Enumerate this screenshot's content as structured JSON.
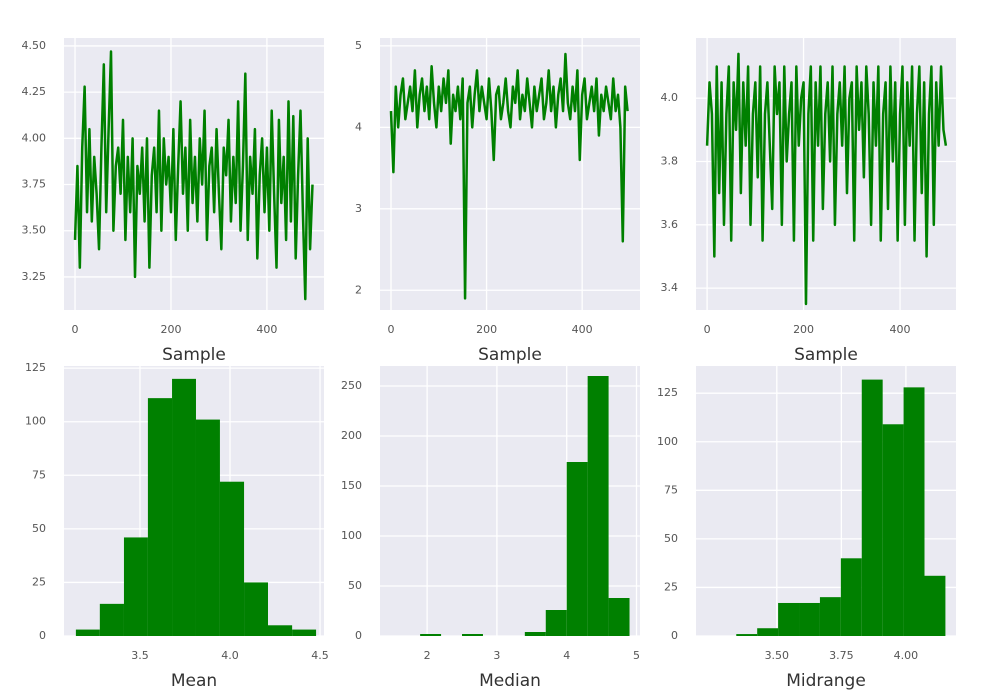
{
  "chart_data": [
    {
      "type": "line",
      "xlabel": "Sample",
      "color": "#008000",
      "grid": true,
      "x": [
        0,
        5,
        10,
        15,
        20,
        25,
        30,
        35,
        40,
        45,
        50,
        55,
        60,
        65,
        70,
        75,
        80,
        85,
        90,
        95,
        100,
        105,
        110,
        115,
        120,
        125,
        130,
        135,
        140,
        145,
        150,
        155,
        160,
        165,
        170,
        175,
        180,
        185,
        190,
        195,
        200,
        205,
        210,
        215,
        220,
        225,
        230,
        235,
        240,
        245,
        250,
        255,
        260,
        265,
        270,
        275,
        280,
        285,
        290,
        295,
        300,
        305,
        310,
        315,
        320,
        325,
        330,
        335,
        340,
        345,
        350,
        355,
        360,
        365,
        370,
        375,
        380,
        385,
        390,
        395,
        400,
        405,
        410,
        415,
        420,
        425,
        430,
        435,
        440,
        445,
        450,
        455,
        460,
        465,
        470,
        475,
        480,
        485,
        490,
        495
      ],
      "values": [
        3.45,
        3.85,
        3.3,
        3.95,
        4.28,
        3.6,
        4.05,
        3.55,
        3.9,
        3.7,
        3.4,
        3.95,
        4.4,
        3.6,
        4.05,
        4.47,
        3.5,
        3.85,
        3.95,
        3.7,
        4.1,
        3.45,
        3.9,
        3.6,
        4.0,
        3.25,
        3.85,
        3.7,
        3.95,
        3.55,
        4.0,
        3.3,
        3.8,
        3.95,
        3.6,
        4.15,
        3.5,
        4.0,
        3.75,
        3.9,
        3.6,
        4.05,
        3.45,
        3.85,
        4.2,
        3.7,
        3.95,
        3.5,
        4.1,
        3.65,
        3.9,
        3.55,
        4.0,
        3.75,
        4.15,
        3.45,
        3.85,
        3.95,
        3.6,
        4.05,
        3.7,
        3.4,
        3.95,
        3.8,
        4.1,
        3.55,
        3.9,
        3.65,
        4.2,
        3.5,
        3.85,
        4.35,
        3.45,
        3.9,
        3.7,
        4.05,
        3.35,
        3.8,
        4.0,
        3.6,
        3.95,
        3.5,
        4.15,
        3.7,
        3.3,
        4.1,
        3.65,
        3.9,
        3.45,
        4.2,
        3.55,
        4.12,
        3.35,
        3.8,
        4.15,
        3.6,
        3.13,
        4.0,
        3.4,
        3.75
      ],
      "xlim": [
        -23,
        519
      ],
      "xticks": [
        0,
        200,
        400
      ],
      "ylim": [
        3.071,
        4.543
      ],
      "yticks": [
        {
          "value": 3.25,
          "label": "3.25"
        },
        {
          "value": 3.5,
          "label": "3.50"
        },
        {
          "value": 3.75,
          "label": "3.75"
        },
        {
          "value": 4.0,
          "label": "4.00"
        },
        {
          "value": 4.25,
          "label": "4.25"
        },
        {
          "value": 4.5,
          "label": "4.50"
        }
      ]
    },
    {
      "type": "line",
      "xlabel": "Sample",
      "color": "#008000",
      "grid": true,
      "x": [
        0,
        5,
        10,
        15,
        20,
        25,
        30,
        35,
        40,
        45,
        50,
        55,
        60,
        65,
        70,
        75,
        80,
        85,
        90,
        95,
        100,
        105,
        110,
        115,
        120,
        125,
        130,
        135,
        140,
        145,
        150,
        155,
        160,
        165,
        170,
        175,
        180,
        185,
        190,
        195,
        200,
        205,
        210,
        215,
        220,
        225,
        230,
        235,
        240,
        245,
        250,
        255,
        260,
        265,
        270,
        275,
        280,
        285,
        290,
        295,
        300,
        305,
        310,
        315,
        320,
        325,
        330,
        335,
        340,
        345,
        350,
        355,
        360,
        365,
        370,
        375,
        380,
        385,
        390,
        395,
        400,
        405,
        410,
        415,
        420,
        425,
        430,
        435,
        440,
        445,
        450,
        455,
        460,
        465,
        470,
        475,
        480,
        485,
        490,
        495
      ],
      "values": [
        4.2,
        3.45,
        4.5,
        4.0,
        4.4,
        4.6,
        4.1,
        4.3,
        4.5,
        4.2,
        4.7,
        4.0,
        4.4,
        4.6,
        4.2,
        4.5,
        4.1,
        4.75,
        4.3,
        4.0,
        4.5,
        4.2,
        4.6,
        4.3,
        4.7,
        3.8,
        4.4,
        4.2,
        4.5,
        4.1,
        4.6,
        1.9,
        4.3,
        4.5,
        4.0,
        4.4,
        4.7,
        4.2,
        4.5,
        4.3,
        4.1,
        4.6,
        4.2,
        3.6,
        4.4,
        4.5,
        4.1,
        4.3,
        4.6,
        4.2,
        4.0,
        4.5,
        4.3,
        4.7,
        4.1,
        4.4,
        4.2,
        4.6,
        4.3,
        4.0,
        4.5,
        4.2,
        4.4,
        4.6,
        4.1,
        4.3,
        4.7,
        4.2,
        4.5,
        4.0,
        4.4,
        4.6,
        4.2,
        4.9,
        4.3,
        4.1,
        4.5,
        4.2,
        4.7,
        3.6,
        4.4,
        4.6,
        4.1,
        4.3,
        4.5,
        4.2,
        4.6,
        3.9,
        4.4,
        4.2,
        4.5,
        4.3,
        4.1,
        4.6,
        4.2,
        4.4,
        4.0,
        2.6,
        4.5,
        4.2
      ],
      "xlim": [
        -23,
        521
      ],
      "xticks": [
        0,
        200,
        400
      ],
      "ylim": [
        1.758,
        5.097
      ],
      "yticks": [
        2,
        3,
        4,
        5
      ]
    },
    {
      "type": "line",
      "xlabel": "Sample",
      "color": "#008000",
      "grid": true,
      "x": [
        0,
        5,
        10,
        15,
        20,
        25,
        30,
        35,
        40,
        45,
        50,
        55,
        60,
        65,
        70,
        75,
        80,
        85,
        90,
        95,
        100,
        105,
        110,
        115,
        120,
        125,
        130,
        135,
        140,
        145,
        150,
        155,
        160,
        165,
        170,
        175,
        180,
        185,
        190,
        195,
        200,
        205,
        210,
        215,
        220,
        225,
        230,
        235,
        240,
        245,
        250,
        255,
        260,
        265,
        270,
        275,
        280,
        285,
        290,
        295,
        300,
        305,
        310,
        315,
        320,
        325,
        330,
        335,
        340,
        345,
        350,
        355,
        360,
        365,
        370,
        375,
        380,
        385,
        390,
        395,
        400,
        405,
        410,
        415,
        420,
        425,
        430,
        435,
        440,
        445,
        450,
        455,
        460,
        465,
        470,
        475,
        480,
        485,
        490,
        495
      ],
      "values": [
        3.85,
        4.05,
        3.95,
        3.5,
        4.1,
        3.7,
        4.05,
        3.6,
        3.95,
        4.1,
        3.55,
        4.05,
        3.9,
        4.14,
        3.7,
        4.05,
        3.85,
        4.1,
        3.6,
        3.95,
        4.05,
        3.75,
        4.1,
        3.55,
        3.95,
        4.05,
        3.85,
        3.65,
        4.1,
        3.95,
        4.05,
        3.6,
        4.1,
        3.8,
        3.95,
        4.05,
        3.55,
        4.1,
        3.85,
        4.0,
        4.05,
        3.35,
        3.95,
        4.1,
        3.55,
        4.05,
        3.85,
        4.1,
        3.65,
        3.95,
        4.05,
        3.8,
        4.1,
        3.6,
        3.95,
        4.05,
        3.85,
        4.1,
        3.7,
        4.0,
        4.05,
        3.55,
        4.1,
        3.9,
        4.05,
        3.75,
        4.1,
        3.95,
        3.6,
        4.05,
        3.85,
        4.1,
        3.55,
        3.95,
        4.05,
        3.65,
        4.1,
        3.8,
        4.05,
        3.55,
        3.95,
        4.1,
        3.6,
        4.05,
        3.85,
        4.1,
        3.55,
        3.95,
        4.1,
        3.7,
        4.05,
        3.5,
        3.95,
        4.1,
        3.6,
        4.05,
        3.85,
        4.1,
        3.9,
        3.85
      ],
      "xlim": [
        -23,
        516
      ],
      "xticks": [
        0,
        200,
        400
      ],
      "ylim": [
        3.331,
        4.19
      ],
      "yticks": [
        3.4,
        3.6,
        3.8,
        {
          "value": 4.0,
          "label": "4.0"
        }
      ]
    },
    {
      "type": "histogram",
      "xlabel": "Mean",
      "color": "#008000",
      "grid": true,
      "bins": [
        3.144,
        3.277,
        3.411,
        3.544,
        3.678,
        3.811,
        3.944,
        4.078,
        4.211,
        4.345,
        4.478
      ],
      "values": [
        3,
        15,
        46,
        111,
        120,
        101,
        72,
        25,
        5,
        3
      ],
      "xlim": [
        3.078,
        4.522
      ],
      "xticks": [
        3.5,
        {
          "value": 4.0,
          "label": "4.0"
        },
        4.5
      ],
      "ylim": [
        0,
        126
      ],
      "yticks": [
        0,
        25,
        50,
        75,
        100,
        125
      ]
    },
    {
      "type": "histogram",
      "xlabel": "Median",
      "color": "#008000",
      "grid": true,
      "bins": [
        1.9,
        2.2,
        2.5,
        2.8,
        3.1,
        3.4,
        3.7,
        4.0,
        4.3,
        4.6,
        4.9
      ],
      "values": [
        2,
        0,
        2,
        0,
        0,
        4,
        26,
        174,
        260,
        38
      ],
      "xlim": [
        1.325,
        5.05
      ],
      "xticks": [
        2,
        3,
        4,
        5
      ],
      "ylim": [
        0,
        270
      ],
      "yticks": [
        0,
        50,
        100,
        150,
        200,
        250
      ]
    },
    {
      "type": "histogram",
      "xlabel": "Midrange",
      "color": "#008000",
      "grid": true,
      "bins": [
        3.343,
        3.424,
        3.505,
        3.586,
        3.667,
        3.748,
        3.829,
        3.91,
        3.991,
        4.072,
        4.153
      ],
      "values": [
        1,
        4,
        17,
        17,
        20,
        40,
        132,
        109,
        128,
        31
      ],
      "xlim": [
        3.187,
        4.194
      ],
      "xticks": [
        {
          "value": 3.5,
          "label": "3.50"
        },
        {
          "value": 3.75,
          "label": "3.75"
        },
        {
          "value": 4.0,
          "label": "4.00"
        }
      ],
      "ylim": [
        0,
        139
      ],
      "yticks": [
        0,
        25,
        50,
        75,
        100,
        125
      ]
    }
  ]
}
